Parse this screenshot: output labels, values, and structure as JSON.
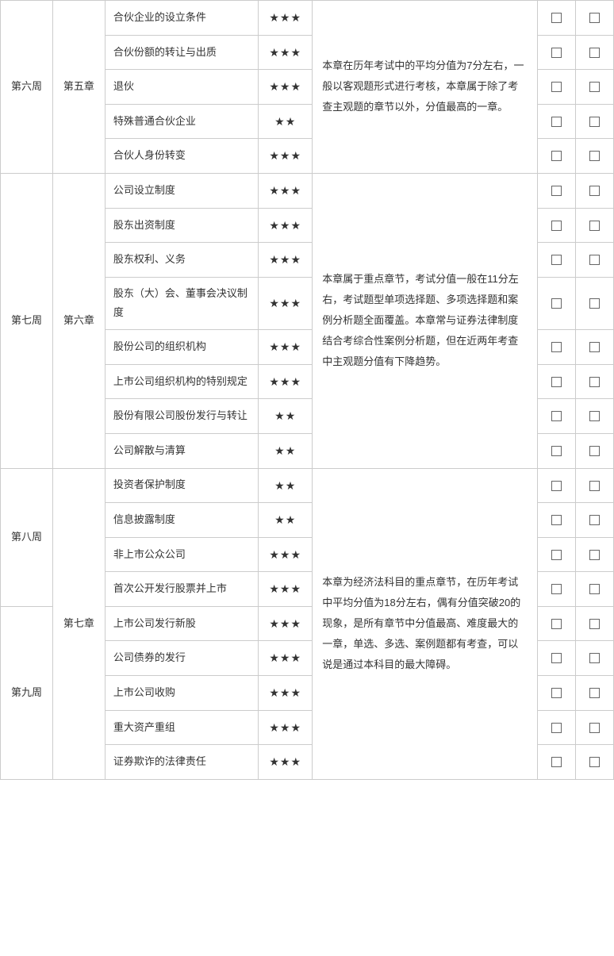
{
  "star": "★",
  "colors": {
    "border": "#cccccc",
    "text": "#333333",
    "background": "#ffffff"
  },
  "weeks": {
    "w6": "第六周",
    "w7": "第七周",
    "w8": "第八周",
    "w9": "第九周"
  },
  "chapters": {
    "c5": "第五章",
    "c6": "第六章",
    "c7": "第七章"
  },
  "descriptions": {
    "c5": "本章在历年考试中的平均分值为7分左右，一般以客观题形式进行考核，本章属于除了考查主观题的章节以外，分值最高的一章。",
    "c6": "本章属于重点章节，考试分值一般在11分左右，考试题型单项选择题、多项选择题和案例分析题全面覆盖。本章常与证券法律制度结合考综合性案例分析题，但在近两年考查中主观题分值有下降趋势。",
    "c7": "本章为经济法科目的重点章节，在历年考试中平均分值为18分左右，偶有分值突破20的现象，是所有章节中分值最高、难度最大的一章，单选、多选、案例题都有考查，可以说是通过本科目的最大障碍。"
  },
  "rows": [
    {
      "topic": "合伙企业的设立条件",
      "stars": "★★★"
    },
    {
      "topic": "合伙份额的转让与出质",
      "stars": "★★★"
    },
    {
      "topic": "退伙",
      "stars": "★★★"
    },
    {
      "topic": "特殊普通合伙企业",
      "stars": "★★"
    },
    {
      "topic": "合伙人身份转变",
      "stars": "★★★"
    },
    {
      "topic": "公司设立制度",
      "stars": "★★★"
    },
    {
      "topic": "股东出资制度",
      "stars": "★★★"
    },
    {
      "topic": "股东权利、义务",
      "stars": "★★★"
    },
    {
      "topic": "股东（大）会、董事会决议制度",
      "stars": "★★★"
    },
    {
      "topic": "股份公司的组织机构",
      "stars": "★★★"
    },
    {
      "topic": "上市公司组织机构的特别规定",
      "stars": "★★★"
    },
    {
      "topic": "股份有限公司股份发行与转让",
      "stars": "★★"
    },
    {
      "topic": "公司解散与清算",
      "stars": "★★"
    },
    {
      "topic": "投资者保护制度",
      "stars": "★★"
    },
    {
      "topic": "信息披露制度",
      "stars": "★★"
    },
    {
      "topic": "非上市公众公司",
      "stars": "★★★"
    },
    {
      "topic": "首次公开发行股票并上市",
      "stars": "★★★"
    },
    {
      "topic": "上市公司发行新股",
      "stars": "★★★"
    },
    {
      "topic": "公司债券的发行",
      "stars": "★★★"
    },
    {
      "topic": "上市公司收购",
      "stars": "★★★"
    },
    {
      "topic": "重大资产重组",
      "stars": "★★★"
    },
    {
      "topic": "证券欺诈的法律责任",
      "stars": "★★★"
    }
  ]
}
